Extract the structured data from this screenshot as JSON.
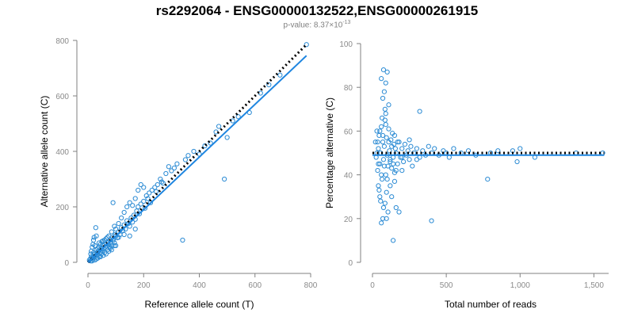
{
  "title": "rs2292064 - ENSG00000132522,ENSG00000261915",
  "subtitle": {
    "prefix": "p-value: 8.37×10",
    "exponent": "-13"
  },
  "colors": {
    "points": "#2b8bd4",
    "fit": "#1f86e0",
    "reference": "#000000",
    "axis": "#808080"
  },
  "chart_data": [
    {
      "type": "scatter",
      "xlabel": "Reference allele count (T)",
      "ylabel": "Alternative allele count (C)",
      "xlim": [
        0,
        800
      ],
      "ylim": [
        0,
        800
      ],
      "xticks": [
        "0",
        "200",
        "400",
        "600",
        "800"
      ],
      "yticks": [
        "0",
        "200",
        "400",
        "600",
        "800"
      ],
      "grid": false,
      "lines": [
        {
          "style": "dotted",
          "color": "#000000",
          "points": [
            [
              0,
              0
            ],
            [
              785,
              785
            ]
          ]
        },
        {
          "style": "solid",
          "color": "#1f86e0",
          "points": [
            [
              0,
              0
            ],
            [
              785,
              745
            ]
          ]
        }
      ],
      "points": [
        [
          5,
          8
        ],
        [
          8,
          12
        ],
        [
          10,
          5
        ],
        [
          12,
          20
        ],
        [
          15,
          15
        ],
        [
          18,
          10
        ],
        [
          20,
          22
        ],
        [
          22,
          18
        ],
        [
          25,
          30
        ],
        [
          28,
          25
        ],
        [
          30,
          12
        ],
        [
          32,
          35
        ],
        [
          35,
          28
        ],
        [
          38,
          40
        ],
        [
          40,
          20
        ],
        [
          42,
          45
        ],
        [
          45,
          38
        ],
        [
          48,
          30
        ],
        [
          50,
          50
        ],
        [
          52,
          42
        ],
        [
          55,
          60
        ],
        [
          58,
          48
        ],
        [
          60,
          35
        ],
        [
          62,
          55
        ],
        [
          65,
          65
        ],
        [
          68,
          58
        ],
        [
          70,
          45
        ],
        [
          72,
          70
        ],
        [
          75,
          62
        ],
        [
          78,
          55
        ],
        [
          80,
          80
        ],
        [
          82,
          72
        ],
        [
          85,
          60
        ],
        [
          88,
          90
        ],
        [
          90,
          78
        ],
        [
          92,
          85
        ],
        [
          95,
          70
        ],
        [
          98,
          100
        ],
        [
          100,
          95
        ],
        [
          105,
          88
        ],
        [
          110,
          110
        ],
        [
          115,
          100
        ],
        [
          120,
          125
        ],
        [
          125,
          115
        ],
        [
          130,
          135
        ],
        [
          135,
          120
        ],
        [
          140,
          150
        ],
        [
          145,
          140
        ],
        [
          150,
          130
        ],
        [
          155,
          160
        ],
        [
          160,
          145
        ],
        [
          165,
          170
        ],
        [
          170,
          155
        ],
        [
          175,
          185
        ],
        [
          180,
          200
        ],
        [
          185,
          175
        ],
        [
          190,
          210
        ],
        [
          200,
          220
        ],
        [
          205,
          195
        ],
        [
          210,
          240
        ],
        [
          215,
          230
        ],
        [
          220,
          250
        ],
        [
          225,
          215
        ],
        [
          230,
          260
        ],
        [
          240,
          270
        ],
        [
          245,
          255
        ],
        [
          250,
          280
        ],
        [
          260,
          300
        ],
        [
          265,
          290
        ],
        [
          270,
          285
        ],
        [
          280,
          320
        ],
        [
          290,
          345
        ],
        [
          300,
          330
        ],
        [
          310,
          340
        ],
        [
          320,
          355
        ],
        [
          340,
          80
        ],
        [
          350,
          370
        ],
        [
          360,
          385
        ],
        [
          380,
          400
        ],
        [
          400,
          390
        ],
        [
          420,
          420
        ],
        [
          440,
          430
        ],
        [
          460,
          470
        ],
        [
          470,
          490
        ],
        [
          490,
          300
        ],
        [
          500,
          450
        ],
        [
          520,
          510
        ],
        [
          540,
          525
        ],
        [
          580,
          540
        ],
        [
          620,
          610
        ],
        [
          650,
          640
        ],
        [
          690,
          675
        ],
        [
          785,
          785
        ],
        [
          10,
          30
        ],
        [
          15,
          55
        ],
        [
          20,
          80
        ],
        [
          25,
          60
        ],
        [
          30,
          95
        ],
        [
          35,
          50
        ],
        [
          40,
          70
        ],
        [
          12,
          40
        ],
        [
          18,
          65
        ],
        [
          22,
          90
        ],
        [
          28,
          125
        ],
        [
          15,
          5
        ],
        [
          25,
          8
        ],
        [
          35,
          15
        ],
        [
          45,
          20
        ],
        [
          55,
          25
        ],
        [
          65,
          30
        ],
        [
          75,
          40
        ],
        [
          85,
          45
        ],
        [
          95,
          60
        ],
        [
          60,
          80
        ],
        [
          70,
          90
        ],
        [
          50,
          75
        ],
        [
          40,
          55
        ],
        [
          30,
          45
        ],
        [
          20,
          35
        ],
        [
          45,
          65
        ],
        [
          55,
          78
        ],
        [
          65,
          85
        ],
        [
          75,
          95
        ],
        [
          85,
          110
        ],
        [
          95,
          130
        ],
        [
          100,
          120
        ],
        [
          110,
          140
        ],
        [
          120,
          160
        ],
        [
          130,
          180
        ],
        [
          140,
          200
        ],
        [
          150,
          215
        ],
        [
          160,
          205
        ],
        [
          170,
          230
        ],
        [
          180,
          260
        ],
        [
          190,
          280
        ],
        [
          200,
          270
        ],
        [
          90,
          215
        ],
        [
          130,
          100
        ],
        [
          150,
          95
        ],
        [
          170,
          120
        ],
        [
          110,
          90
        ],
        [
          100,
          60
        ],
        [
          80,
          50
        ]
      ]
    },
    {
      "type": "scatter",
      "xlabel": "Total number of reads",
      "ylabel": "Percentage alternative (C)",
      "xlim": [
        0,
        1600
      ],
      "ylim": [
        0,
        100
      ],
      "xticks": [
        "0",
        "500",
        "1,000",
        "1,500"
      ],
      "yticks": [
        "0",
        "20",
        "40",
        "60",
        "80",
        "100"
      ],
      "grid": false,
      "lines": [
        {
          "style": "dotted",
          "color": "#000000",
          "points": [
            [
              0,
              50
            ],
            [
              1570,
              50
            ]
          ]
        },
        {
          "style": "solid",
          "color": "#1f86e0",
          "points": [
            [
              0,
              49
            ],
            [
              1570,
              49
            ]
          ]
        }
      ],
      "points": [
        [
          20,
          55
        ],
        [
          25,
          48
        ],
        [
          30,
          60
        ],
        [
          35,
          42
        ],
        [
          40,
          52
        ],
        [
          45,
          58
        ],
        [
          50,
          45
        ],
        [
          55,
          50
        ],
        [
          60,
          62
        ],
        [
          65,
          38
        ],
        [
          70,
          55
        ],
        [
          75,
          47
        ],
        [
          80,
          53
        ],
        [
          85,
          65
        ],
        [
          90,
          40
        ],
        [
          95,
          57
        ],
        [
          100,
          49
        ],
        [
          105,
          44
        ],
        [
          110,
          61
        ],
        [
          115,
          51
        ],
        [
          120,
          46
        ],
        [
          125,
          56
        ],
        [
          130,
          43
        ],
        [
          135,
          59
        ],
        [
          140,
          48
        ],
        [
          145,
          54
        ],
        [
          150,
          41
        ],
        [
          155,
          52
        ],
        [
          160,
          50
        ],
        [
          170,
          45
        ],
        [
          180,
          55
        ],
        [
          190,
          48
        ],
        [
          200,
          52
        ],
        [
          210,
          46
        ],
        [
          220,
          54
        ],
        [
          230,
          49
        ],
        [
          240,
          51
        ],
        [
          250,
          47
        ],
        [
          260,
          53
        ],
        [
          280,
          50
        ],
        [
          300,
          52
        ],
        [
          320,
          48
        ],
        [
          340,
          51
        ],
        [
          360,
          49
        ],
        [
          380,
          53
        ],
        [
          400,
          50
        ],
        [
          420,
          52
        ],
        [
          450,
          49
        ],
        [
          480,
          51
        ],
        [
          500,
          50
        ],
        [
          520,
          48
        ],
        [
          550,
          52
        ],
        [
          600,
          50
        ],
        [
          650,
          51
        ],
        [
          700,
          49
        ],
        [
          780,
          38
        ],
        [
          800,
          50
        ],
        [
          850,
          51
        ],
        [
          950,
          51
        ],
        [
          980,
          46
        ],
        [
          1000,
          52
        ],
        [
          1100,
          48
        ],
        [
          1380,
          50
        ],
        [
          1560,
          50
        ],
        [
          60,
          84
        ],
        [
          75,
          88
        ],
        [
          90,
          82
        ],
        [
          100,
          87
        ],
        [
          80,
          78
        ],
        [
          95,
          20
        ],
        [
          105,
          23
        ],
        [
          130,
          30
        ],
        [
          70,
          20
        ],
        [
          60,
          18
        ],
        [
          140,
          10
        ],
        [
          160,
          25
        ],
        [
          180,
          23
        ],
        [
          400,
          19
        ],
        [
          70,
          75
        ],
        [
          85,
          70
        ],
        [
          110,
          72
        ],
        [
          320,
          69
        ],
        [
          90,
          68
        ],
        [
          65,
          66
        ],
        [
          40,
          35
        ],
        [
          50,
          30
        ],
        [
          55,
          28
        ],
        [
          45,
          33
        ],
        [
          75,
          25
        ],
        [
          85,
          27
        ],
        [
          95,
          32
        ],
        [
          120,
          35
        ],
        [
          150,
          37
        ],
        [
          200,
          42
        ],
        [
          30,
          50
        ],
        [
          35,
          55
        ],
        [
          40,
          45
        ],
        [
          50,
          60
        ],
        [
          60,
          40
        ],
        [
          70,
          58
        ],
        [
          80,
          44
        ],
        [
          90,
          63
        ],
        [
          100,
          38
        ],
        [
          110,
          55
        ],
        [
          120,
          47
        ],
        [
          130,
          53
        ],
        [
          140,
          45
        ],
        [
          150,
          58
        ],
        [
          160,
          42
        ],
        [
          170,
          55
        ],
        [
          200,
          48
        ],
        [
          250,
          56
        ],
        [
          270,
          44
        ],
        [
          300,
          47
        ]
      ]
    }
  ]
}
